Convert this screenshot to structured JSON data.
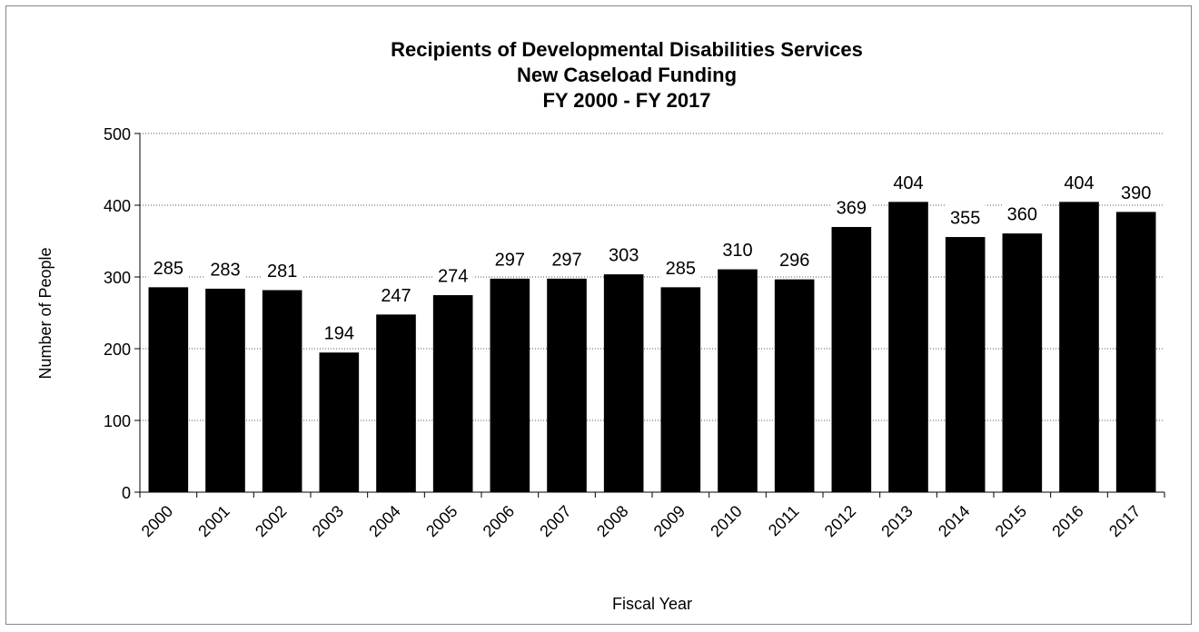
{
  "chart_data": {
    "type": "bar",
    "title_lines": [
      "Recipients of Developmental Disabilities Services",
      "New Caseload Funding",
      "FY 2000 - FY 2017"
    ],
    "xlabel": "Fiscal Year",
    "ylabel": "Number of People",
    "categories": [
      "2000",
      "2001",
      "2002",
      "2003",
      "2004",
      "2005",
      "2006",
      "2007",
      "2008",
      "2009",
      "2010",
      "2011",
      "2012",
      "2013",
      "2014",
      "2015",
      "2016",
      "2017"
    ],
    "values": [
      285,
      283,
      281,
      194,
      247,
      274,
      297,
      297,
      303,
      285,
      310,
      296,
      369,
      404,
      355,
      360,
      404,
      390
    ],
    "yticks": [
      0,
      100,
      200,
      300,
      400,
      500
    ],
    "ylim": [
      0,
      500
    ],
    "grid": "horizontal dotted",
    "legend": "none",
    "bar_color": "#000000",
    "data_labels": true
  }
}
